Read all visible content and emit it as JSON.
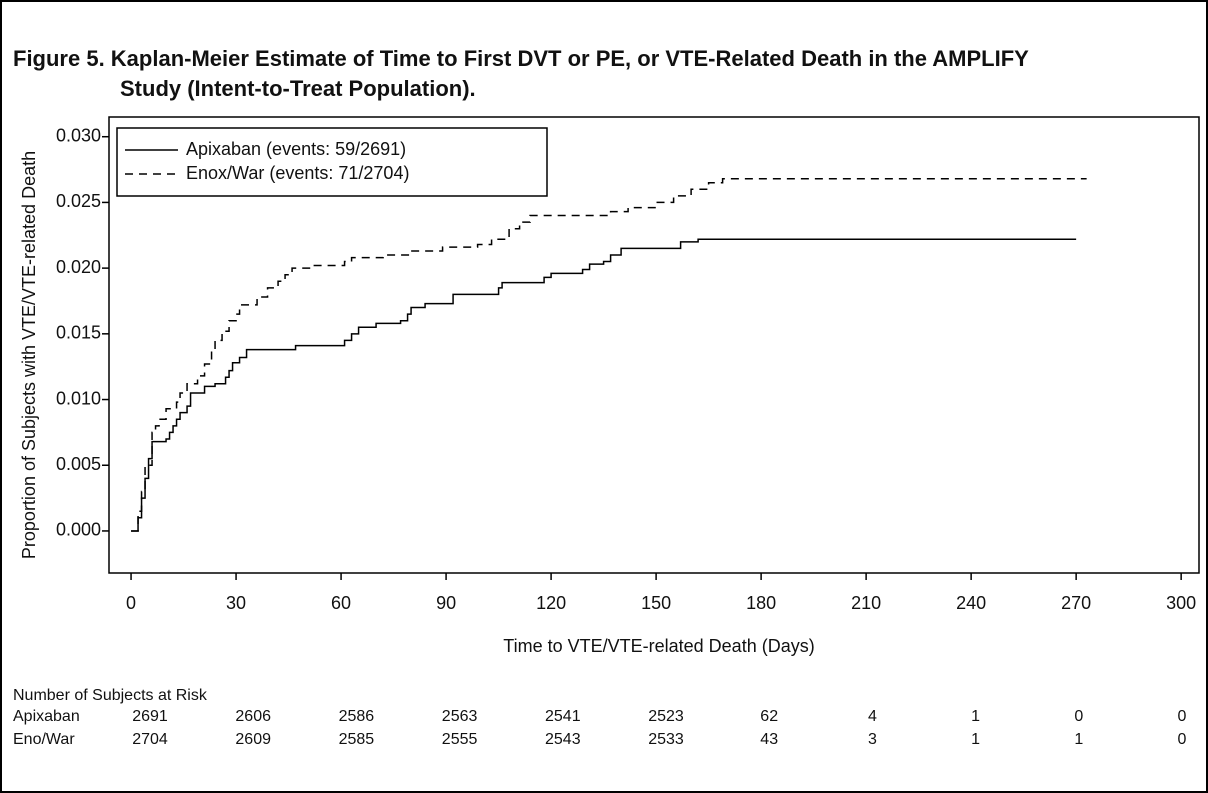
{
  "chart_data": {
    "type": "step",
    "title": [
      "Figure 5. Kaplan-Meier Estimate of Time to First DVT or PE, or VTE-Related Death in the AMPLIFY",
      "Study (Intent-to-Treat Population)."
    ],
    "x_label": "Time to VTE/VTE-related Death (Days)",
    "y_label": "Proportion of Subjects with VTE/VTE-related Death",
    "xlim": [
      -6.3,
      305.1
    ],
    "ylim": [
      -0.0032,
      0.0315
    ],
    "xticks": [
      0,
      30,
      60,
      90,
      120,
      150,
      180,
      210,
      240,
      270,
      300
    ],
    "yticks": [
      {
        "value": 0,
        "label": "0.000"
      },
      {
        "value": 0.005,
        "label": "0.005"
      },
      {
        "value": 0.01,
        "label": "0.010"
      },
      {
        "value": 0.015,
        "label": "0.015"
      },
      {
        "value": 0.02,
        "label": "0.020"
      },
      {
        "value": 0.025,
        "label": "0.025"
      },
      {
        "value": 0.03,
        "label": "0.030"
      }
    ],
    "legend": "upper left",
    "series": [
      {
        "name": "Apixaban (events: 59/2691)",
        "color": "#000000",
        "linestyle": "solid",
        "x": [
          0,
          2,
          3,
          4,
          5,
          6,
          10,
          11,
          12,
          13,
          14,
          16,
          17,
          21,
          24,
          27,
          28,
          29,
          31,
          33,
          47,
          61,
          63,
          65,
          70,
          77,
          79,
          80,
          84,
          92,
          105,
          106,
          118,
          120,
          129,
          131,
          135,
          137,
          140,
          157,
          162,
          270
        ],
        "values": [
          0,
          0.001,
          0.0025,
          0.004,
          0.0055,
          0.0068,
          0.007,
          0.0075,
          0.008,
          0.0085,
          0.009,
          0.0095,
          0.0105,
          0.011,
          0.0112,
          0.0117,
          0.0122,
          0.0128,
          0.0132,
          0.0138,
          0.0141,
          0.0145,
          0.015,
          0.0155,
          0.0158,
          0.016,
          0.0165,
          0.017,
          0.0173,
          0.018,
          0.0185,
          0.0189,
          0.0193,
          0.0196,
          0.0199,
          0.0203,
          0.0205,
          0.021,
          0.0215,
          0.022,
          0.0222,
          0.0222
        ]
      },
      {
        "name": "Enox/War (events: 71/2704)",
        "color": "#000000",
        "linestyle": "dashed",
        "x": [
          0,
          2,
          3,
          4,
          6,
          7,
          8,
          10,
          13,
          14,
          16,
          19,
          21,
          23,
          24,
          26,
          28,
          30,
          31,
          36,
          39,
          42,
          44,
          46,
          52,
          61,
          63,
          72,
          80,
          89,
          99,
          103,
          108,
          111,
          114,
          137,
          142,
          150,
          155,
          160,
          165,
          169,
          273
        ],
        "values": [
          0,
          0.0015,
          0.003,
          0.005,
          0.0075,
          0.008,
          0.0085,
          0.0093,
          0.0098,
          0.0105,
          0.0112,
          0.0118,
          0.0127,
          0.0137,
          0.0145,
          0.0152,
          0.016,
          0.0165,
          0.0172,
          0.0178,
          0.0185,
          0.019,
          0.0195,
          0.02,
          0.0202,
          0.0205,
          0.0208,
          0.021,
          0.0213,
          0.0216,
          0.0218,
          0.0222,
          0.023,
          0.0235,
          0.024,
          0.0243,
          0.0246,
          0.025,
          0.0255,
          0.026,
          0.0265,
          0.0268,
          0.0268
        ]
      }
    ],
    "risk_table": {
      "title": "Number of Subjects at Risk",
      "rows": [
        {
          "name": "Apixaban",
          "values": [
            2691,
            2606,
            2586,
            2563,
            2541,
            2523,
            62,
            4,
            1,
            0,
            0
          ]
        },
        {
          "name": "Eno/War",
          "values": [
            2704,
            2609,
            2585,
            2555,
            2543,
            2533,
            43,
            3,
            1,
            1,
            0
          ]
        }
      ]
    }
  }
}
